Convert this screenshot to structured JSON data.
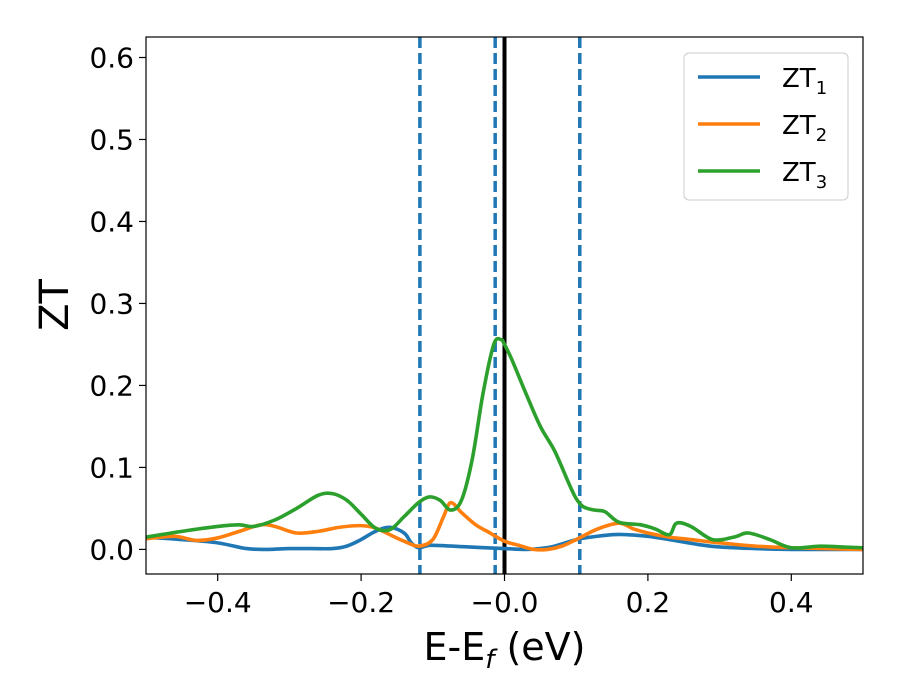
{
  "chart_data": {
    "type": "line",
    "title": "",
    "xlabel": {
      "main": "E-E",
      "sub": "f",
      "suffix": " (eV)"
    },
    "ylabel": "ZT",
    "xlim": [
      -0.5,
      0.5
    ],
    "ylim": [
      -0.03,
      0.625
    ],
    "xticks": [
      -0.4,
      -0.2,
      0.0,
      0.2,
      0.4
    ],
    "xtick_labels": [
      "−0.4",
      "−0.2",
      "−0.0",
      "0.2",
      "0.4"
    ],
    "yticks": [
      0.0,
      0.1,
      0.2,
      0.3,
      0.4,
      0.5,
      0.6
    ],
    "ytick_labels": [
      "0.0",
      "0.1",
      "0.2",
      "0.3",
      "0.4",
      "0.5",
      "0.6"
    ],
    "grid": false,
    "legend_position": "top-right",
    "vlines_dashed": {
      "x": [
        -0.118,
        -0.013,
        0.105
      ],
      "color": "#1f77b4"
    },
    "vline_solid": {
      "x": 0.0,
      "color": "#000000"
    },
    "series": [
      {
        "name": "ZT",
        "sub": "1",
        "color": "#1f77b4",
        "x": [
          -0.5,
          -0.45,
          -0.4,
          -0.36,
          -0.33,
          -0.3,
          -0.27,
          -0.24,
          -0.22,
          -0.2,
          -0.18,
          -0.16,
          -0.14,
          -0.13,
          -0.12,
          -0.11,
          -0.1,
          -0.05,
          0.0,
          0.03,
          0.05,
          0.07,
          0.1,
          0.12,
          0.15,
          0.17,
          0.2,
          0.23,
          0.27,
          0.3,
          0.35,
          0.4,
          0.45,
          0.5
        ],
        "y": [
          0.015,
          0.012,
          0.008,
          0.001,
          0.0,
          0.001,
          0.001,
          0.001,
          0.004,
          0.012,
          0.022,
          0.027,
          0.02,
          0.008,
          0.002,
          0.004,
          0.005,
          0.003,
          0.001,
          0.0,
          0.001,
          0.004,
          0.012,
          0.015,
          0.018,
          0.018,
          0.016,
          0.012,
          0.006,
          0.003,
          0.001,
          0.0,
          0.0,
          0.0
        ]
      },
      {
        "name": "ZT",
        "sub": "2",
        "color": "#ff7f0e",
        "x": [
          -0.5,
          -0.46,
          -0.43,
          -0.4,
          -0.37,
          -0.34,
          -0.32,
          -0.29,
          -0.26,
          -0.23,
          -0.2,
          -0.18,
          -0.16,
          -0.14,
          -0.12,
          -0.1,
          -0.085,
          -0.075,
          -0.06,
          -0.04,
          -0.02,
          0.0,
          0.02,
          0.04,
          0.06,
          0.08,
          0.1,
          0.13,
          0.16,
          0.18,
          0.2,
          0.23,
          0.26,
          0.3,
          0.35,
          0.4,
          0.45,
          0.5
        ],
        "y": [
          0.013,
          0.016,
          0.011,
          0.014,
          0.022,
          0.03,
          0.028,
          0.02,
          0.022,
          0.027,
          0.029,
          0.026,
          0.018,
          0.01,
          0.004,
          0.012,
          0.04,
          0.057,
          0.045,
          0.03,
          0.02,
          0.01,
          0.005,
          0.0,
          0.0,
          0.004,
          0.012,
          0.025,
          0.032,
          0.025,
          0.02,
          0.015,
          0.012,
          0.008,
          0.004,
          0.002,
          0.001,
          0.0
        ]
      },
      {
        "name": "ZT",
        "sub": "3",
        "color": "#2ca02c",
        "x": [
          -0.5,
          -0.45,
          -0.4,
          -0.37,
          -0.35,
          -0.32,
          -0.29,
          -0.26,
          -0.24,
          -0.22,
          -0.2,
          -0.18,
          -0.16,
          -0.14,
          -0.12,
          -0.105,
          -0.09,
          -0.075,
          -0.06,
          -0.045,
          -0.03,
          -0.015,
          -0.005,
          0.0,
          0.01,
          0.03,
          0.05,
          0.07,
          0.09,
          0.1,
          0.11,
          0.125,
          0.14,
          0.16,
          0.19,
          0.21,
          0.23,
          0.24,
          0.26,
          0.29,
          0.32,
          0.34,
          0.37,
          0.4,
          0.44,
          0.47,
          0.5
        ],
        "y": [
          0.015,
          0.022,
          0.028,
          0.03,
          0.028,
          0.036,
          0.05,
          0.066,
          0.068,
          0.06,
          0.043,
          0.026,
          0.024,
          0.04,
          0.057,
          0.064,
          0.06,
          0.048,
          0.06,
          0.11,
          0.19,
          0.25,
          0.256,
          0.25,
          0.232,
          0.19,
          0.15,
          0.12,
          0.08,
          0.062,
          0.052,
          0.048,
          0.046,
          0.033,
          0.03,
          0.025,
          0.018,
          0.032,
          0.028,
          0.012,
          0.015,
          0.02,
          0.012,
          0.002,
          0.004,
          0.003,
          0.002
        ]
      }
    ]
  }
}
